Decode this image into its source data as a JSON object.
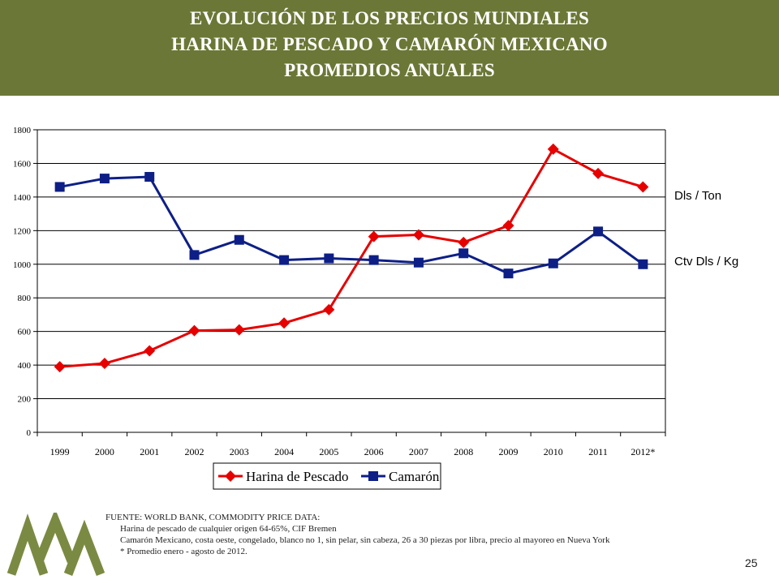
{
  "header": {
    "title_lines": [
      "EVOLUCIÓN DE LOS PRECIOS MUNDIALES",
      "HARINA DE PESCADO Y CAMARÓN MEXICANO",
      "PROMEDIOS ANUALES"
    ]
  },
  "colors": {
    "header_bg": "#6b7736",
    "harina": "#e60000",
    "camaron": "#0d1f86",
    "logo": "#7a8a42"
  },
  "chart_data": {
    "type": "line",
    "title": "",
    "xlabel": "",
    "ylabel": "",
    "categories": [
      "1999",
      "2000",
      "2001",
      "2002",
      "2003",
      "2004",
      "2005",
      "2006",
      "2007",
      "2008",
      "2009",
      "2010",
      "2011",
      "2012*"
    ],
    "series": [
      {
        "name": "Harina de Pescado",
        "values": [
          390,
          410,
          485,
          605,
          610,
          650,
          730,
          1165,
          1175,
          1130,
          1230,
          1685,
          1540,
          1460
        ]
      },
      {
        "name": "Camarón",
        "values": [
          1460,
          1510,
          1520,
          1055,
          1145,
          1025,
          1035,
          1025,
          1010,
          1065,
          945,
          1005,
          1195,
          1000
        ]
      }
    ],
    "ylim": [
      0,
      1800
    ],
    "yticks": [
      0,
      200,
      400,
      600,
      800,
      1000,
      1200,
      1400,
      1600,
      1800
    ],
    "grid": true,
    "legend": "bottom",
    "unit_labels": [
      "Dls / Ton",
      "Ctv Dls / Kg"
    ]
  },
  "source": {
    "heading": "FUENTE: WORLD BANK, COMMODITY PRICE DATA:",
    "lines": [
      "Harina de pescado  de cualquier origen 64-65%, CIF Bremen",
      "Camarón Mexicano, costa oeste, congelado,  blanco no 1, sin pelar, sin cabeza,  26 a 30 piezas por libra, precio al mayoreo  en Nueva York",
      "* Promedio enero - agosto de 2012."
    ]
  },
  "page_number": "25"
}
